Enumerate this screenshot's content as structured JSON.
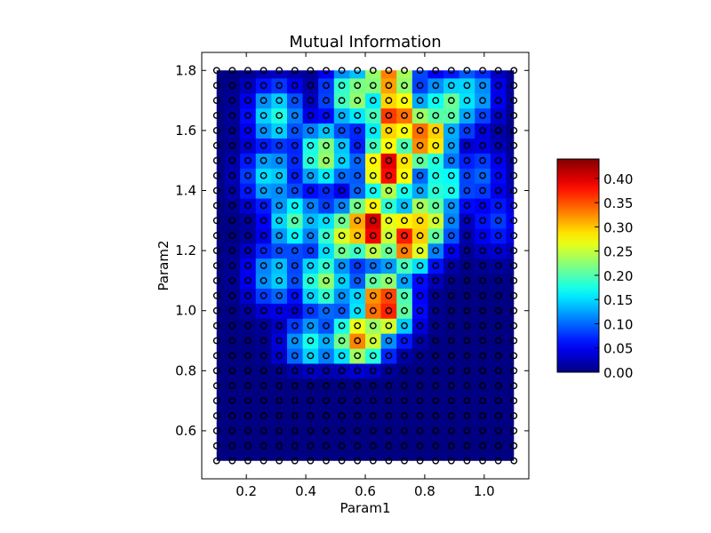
{
  "chart_data": {
    "type": "heatmap",
    "title": "Mutual Information",
    "xlabel": "Param1",
    "ylabel": "Param2",
    "xlim": [
      0.05,
      1.15
    ],
    "ylim": [
      0.44,
      1.86
    ],
    "xticks": [
      0.2,
      0.4,
      0.6,
      0.8,
      1.0
    ],
    "xtick_labels": [
      "0.2",
      "0.4",
      "0.6",
      "0.8",
      "1.0"
    ],
    "yticks": [
      0.6,
      0.8,
      1.0,
      1.2,
      1.4,
      1.6,
      1.8
    ],
    "ytick_labels": [
      "0.6",
      "0.8",
      "1.0",
      "1.2",
      "1.4",
      "1.6",
      "1.8"
    ],
    "colorbar": {
      "min": 0.0,
      "max": 0.44,
      "colormap": "jet",
      "ticks": [
        0.0,
        0.05,
        0.1,
        0.15,
        0.2,
        0.25,
        0.3,
        0.35,
        0.4
      ],
      "tick_labels": [
        "0.00",
        "0.05",
        "0.10",
        "0.15",
        "0.20",
        "0.25",
        "0.30",
        "0.35",
        "0.40"
      ]
    },
    "sample_grid": {
      "x_start": 0.1,
      "x_end": 1.1,
      "x_count": 20,
      "y_start": 0.5,
      "y_end": 1.8,
      "y_count": 27,
      "marker": "open circle",
      "marker_color": "#000000"
    },
    "hotspots": [
      {
        "x": 0.62,
        "y": 1.28,
        "value": 0.42
      },
      {
        "x": 0.68,
        "y": 1.48,
        "value": 0.41
      },
      {
        "x": 0.66,
        "y": 1.02,
        "value": 0.4
      },
      {
        "x": 0.74,
        "y": 1.24,
        "value": 0.38
      },
      {
        "x": 0.7,
        "y": 1.65,
        "value": 0.38
      },
      {
        "x": 0.8,
        "y": 1.58,
        "value": 0.36
      },
      {
        "x": 0.58,
        "y": 0.9,
        "value": 0.33
      },
      {
        "x": 0.8,
        "y": 1.3,
        "value": 0.3
      },
      {
        "x": 0.68,
        "y": 1.78,
        "value": 0.34
      },
      {
        "x": 0.52,
        "y": 1.25,
        "value": 0.26
      },
      {
        "x": 0.46,
        "y": 1.1,
        "value": 0.23
      },
      {
        "x": 0.36,
        "y": 1.3,
        "value": 0.2
      },
      {
        "x": 0.46,
        "y": 1.52,
        "value": 0.24
      },
      {
        "x": 0.88,
        "y": 1.68,
        "value": 0.22
      },
      {
        "x": 0.86,
        "y": 1.42,
        "value": 0.2
      },
      {
        "x": 0.3,
        "y": 1.65,
        "value": 0.18
      },
      {
        "x": 0.3,
        "y": 1.12,
        "value": 0.15
      },
      {
        "x": 0.42,
        "y": 0.88,
        "value": 0.18
      },
      {
        "x": 0.95,
        "y": 1.72,
        "value": 0.16
      },
      {
        "x": 0.56,
        "y": 1.72,
        "value": 0.24
      },
      {
        "x": 0.28,
        "y": 1.45,
        "value": 0.16
      },
      {
        "x": 0.98,
        "y": 1.45,
        "value": 0.1
      },
      {
        "x": 1.04,
        "y": 1.3,
        "value": 0.08
      }
    ],
    "grid": false
  }
}
